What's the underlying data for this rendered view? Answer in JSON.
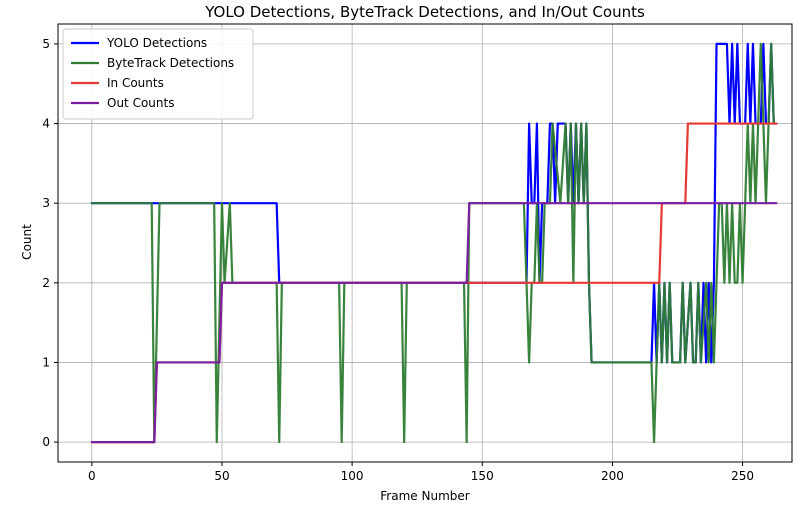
{
  "chart_data": {
    "type": "line",
    "title": "YOLO Detections, ByteTrack Detections, and In/Out Counts",
    "xlabel": "Frame Number",
    "ylabel": "Count",
    "xlim": [
      -13,
      269
    ],
    "ylim": [
      -0.25,
      5.25
    ],
    "xticks": [
      0,
      50,
      100,
      150,
      200,
      250
    ],
    "yticks": [
      0,
      1,
      2,
      3,
      4,
      5
    ],
    "grid": true,
    "legend_position": "top-left",
    "series": [
      {
        "name": "YOLO Detections",
        "color": "#0000ff",
        "points": [
          [
            0,
            3
          ],
          [
            23,
            3
          ],
          [
            24,
            3
          ],
          [
            25,
            3
          ],
          [
            48,
            3
          ],
          [
            49,
            3
          ],
          [
            50,
            3
          ],
          [
            51,
            3
          ],
          [
            52,
            3
          ],
          [
            53,
            3
          ],
          [
            54,
            3
          ],
          [
            71,
            3
          ],
          [
            72,
            2
          ],
          [
            144,
            2
          ],
          [
            167,
            2
          ],
          [
            168,
            4
          ],
          [
            169,
            3
          ],
          [
            170,
            3
          ],
          [
            171,
            4
          ],
          [
            172,
            2
          ],
          [
            173,
            3
          ],
          [
            175,
            3
          ],
          [
            176,
            4
          ],
          [
            177,
            4
          ],
          [
            178,
            3
          ],
          [
            179,
            4
          ],
          [
            182,
            4
          ],
          [
            183,
            3
          ],
          [
            184,
            4
          ],
          [
            185,
            3
          ],
          [
            186,
            4
          ],
          [
            187,
            3
          ],
          [
            188,
            4
          ],
          [
            189,
            3
          ],
          [
            190,
            4
          ],
          [
            191,
            2
          ],
          [
            192,
            1
          ],
          [
            215,
            1
          ],
          [
            216,
            2
          ],
          [
            217,
            1
          ],
          [
            218,
            2
          ],
          [
            219,
            1
          ],
          [
            220,
            2
          ],
          [
            221,
            1
          ],
          [
            222,
            2
          ],
          [
            223,
            1
          ],
          [
            226,
            1
          ],
          [
            227,
            2
          ],
          [
            228,
            1
          ],
          [
            230,
            2
          ],
          [
            231,
            1
          ],
          [
            232,
            1
          ],
          [
            233,
            2
          ],
          [
            234,
            1
          ],
          [
            235,
            2
          ],
          [
            236,
            1
          ],
          [
            237,
            2
          ],
          [
            238,
            1
          ],
          [
            239,
            2
          ],
          [
            240,
            5
          ],
          [
            244,
            5
          ],
          [
            245,
            4
          ],
          [
            246,
            5
          ],
          [
            247,
            4
          ],
          [
            248,
            5
          ],
          [
            249,
            4
          ],
          [
            251,
            4
          ],
          [
            252,
            5
          ],
          [
            253,
            4
          ],
          [
            254,
            5
          ],
          [
            255,
            4
          ],
          [
            257,
            4
          ],
          [
            258,
            5
          ],
          [
            259,
            4
          ],
          [
            260,
            4
          ],
          [
            261,
            5
          ],
          [
            262,
            4
          ],
          [
            263,
            4
          ]
        ]
      },
      {
        "name": "ByteTrack Detections",
        "color": "#2e7d32",
        "points": [
          [
            0,
            3
          ],
          [
            23,
            3
          ],
          [
            24,
            0
          ],
          [
            26,
            3
          ],
          [
            47,
            3
          ],
          [
            48,
            0
          ],
          [
            50,
            3
          ],
          [
            51,
            2
          ],
          [
            53,
            3
          ],
          [
            54,
            2
          ],
          [
            71,
            2
          ],
          [
            72,
            0
          ],
          [
            73,
            2
          ],
          [
            95,
            2
          ],
          [
            96,
            0
          ],
          [
            97,
            2
          ],
          [
            119,
            2
          ],
          [
            120,
            0
          ],
          [
            121,
            2
          ],
          [
            143,
            2
          ],
          [
            144,
            0
          ],
          [
            145,
            3
          ],
          [
            166,
            3
          ],
          [
            167,
            2
          ],
          [
            168,
            1
          ],
          [
            169,
            2
          ],
          [
            170,
            2
          ],
          [
            171,
            3
          ],
          [
            172,
            2
          ],
          [
            173,
            2
          ],
          [
            174,
            3
          ],
          [
            176,
            3
          ],
          [
            177,
            4
          ],
          [
            180,
            3
          ],
          [
            182,
            4
          ],
          [
            183,
            3
          ],
          [
            184,
            4
          ],
          [
            185,
            2
          ],
          [
            186,
            4
          ],
          [
            187,
            3
          ],
          [
            188,
            4
          ],
          [
            189,
            3
          ],
          [
            190,
            4
          ],
          [
            191,
            2
          ],
          [
            192,
            1
          ],
          [
            215,
            1
          ],
          [
            216,
            0
          ],
          [
            217,
            1
          ],
          [
            218,
            2
          ],
          [
            219,
            1
          ],
          [
            220,
            2
          ],
          [
            221,
            1
          ],
          [
            222,
            2
          ],
          [
            223,
            1
          ],
          [
            226,
            1
          ],
          [
            227,
            2
          ],
          [
            228,
            1
          ],
          [
            230,
            2
          ],
          [
            231,
            1
          ],
          [
            232,
            1
          ],
          [
            233,
            2
          ],
          [
            234,
            1
          ],
          [
            236,
            2
          ],
          [
            237,
            1
          ],
          [
            238,
            2
          ],
          [
            239,
            1
          ],
          [
            240,
            2
          ],
          [
            241,
            3
          ],
          [
            242,
            3
          ],
          [
            243,
            2
          ],
          [
            244,
            3
          ],
          [
            245,
            2
          ],
          [
            246,
            3
          ],
          [
            247,
            2
          ],
          [
            248,
            2
          ],
          [
            249,
            3
          ],
          [
            250,
            2
          ],
          [
            251,
            3
          ],
          [
            252,
            4
          ],
          [
            253,
            3
          ],
          [
            254,
            4
          ],
          [
            255,
            3
          ],
          [
            256,
            4
          ],
          [
            257,
            5
          ],
          [
            258,
            4
          ],
          [
            259,
            3
          ],
          [
            260,
            4
          ],
          [
            261,
            5
          ],
          [
            262,
            4
          ],
          [
            263,
            4
          ]
        ]
      },
      {
        "name": "In Counts",
        "color": "#e53935",
        "points": [
          [
            0,
            0
          ],
          [
            24,
            0
          ],
          [
            25,
            1
          ],
          [
            49,
            1
          ],
          [
            50,
            2
          ],
          [
            218,
            2
          ],
          [
            219,
            3
          ],
          [
            228,
            3
          ],
          [
            229,
            4
          ],
          [
            263,
            4
          ]
        ]
      },
      {
        "name": "Out Counts",
        "color": "#7b1fa2",
        "points": [
          [
            0,
            0
          ],
          [
            24,
            0
          ],
          [
            25,
            1
          ],
          [
            49,
            1
          ],
          [
            50,
            2
          ],
          [
            144,
            2
          ],
          [
            145,
            3
          ],
          [
            263,
            3
          ]
        ]
      }
    ]
  }
}
